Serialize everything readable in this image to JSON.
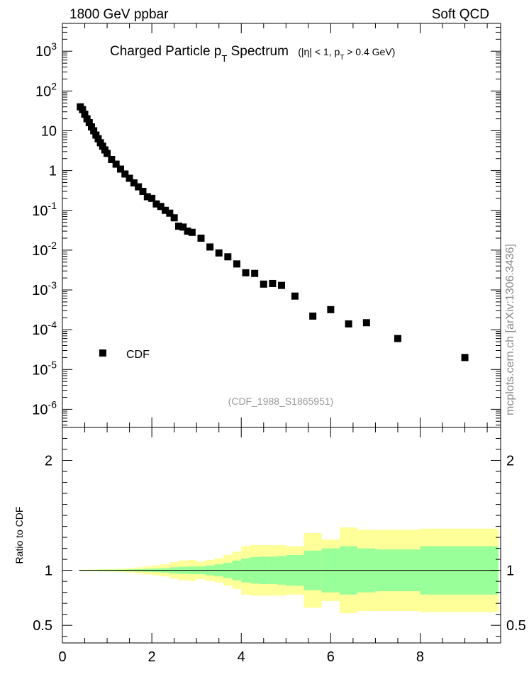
{
  "header": {
    "left": "1800 GeV ppbar",
    "right": "Soft QCD",
    "side": "mcplots.cern.ch [arXiv:1306.3436]"
  },
  "chart_data": {
    "type": "scatter",
    "title": "Charged Particle p",
    "title_sub": "T",
    "title_tail": " Spectrum",
    "title_cut_pre": "(|η| < 1, p",
    "title_cut_sub": "T",
    "title_cut_post": " > 0.4 GeV)",
    "analysis_id": "(CDF_1988_S1865951)",
    "legend_label": "CDF",
    "legend_placement": "bottom-left",
    "log_y": true,
    "xlim": [
      0,
      9.8
    ],
    "ylim": [
      3.5e-07,
      5000
    ],
    "x_ticks": [
      0,
      2,
      4,
      6,
      8
    ],
    "x_tick_labels": [
      "0",
      "2",
      "4",
      "6",
      "8"
    ],
    "y_ticks": [
      1e-06,
      1e-05,
      0.0001,
      0.001,
      0.01,
      0.1,
      1,
      10,
      100,
      1000
    ],
    "y_tick_labels": [
      {
        "base": "10",
        "exp": "-6"
      },
      {
        "base": "10",
        "exp": "-5"
      },
      {
        "base": "10",
        "exp": "-4"
      },
      {
        "base": "10",
        "exp": "-3"
      },
      {
        "base": "10",
        "exp": "-2"
      },
      {
        "base": "10",
        "exp": "-1"
      },
      {
        "base": "1",
        "exp": ""
      },
      {
        "base": "10",
        "exp": ""
      },
      {
        "base": "10",
        "exp": "2"
      },
      {
        "base": "10",
        "exp": "3"
      }
    ],
    "series": [
      {
        "name": "CDF",
        "color": "#000000",
        "x": [
          0.4,
          0.45,
          0.5,
          0.55,
          0.6,
          0.65,
          0.7,
          0.75,
          0.8,
          0.85,
          0.9,
          0.95,
          1.0,
          1.1,
          1.2,
          1.3,
          1.4,
          1.5,
          1.6,
          1.7,
          1.8,
          1.9,
          2.0,
          2.1,
          2.2,
          2.3,
          2.4,
          2.5,
          2.6,
          2.7,
          2.8,
          2.9,
          3.1,
          3.3,
          3.5,
          3.7,
          3.9,
          4.1,
          4.3,
          4.5,
          4.7,
          4.9,
          5.2,
          5.6,
          6.0,
          6.4,
          6.8,
          7.5,
          9.0
        ],
        "y": [
          40,
          34,
          26,
          20,
          16,
          12.5,
          10,
          7.8,
          6.3,
          5.0,
          4.1,
          3.3,
          2.7,
          1.9,
          1.45,
          1.09,
          0.82,
          0.64,
          0.49,
          0.39,
          0.3,
          0.22,
          0.2,
          0.145,
          0.125,
          0.1,
          0.085,
          0.065,
          0.04,
          0.038,
          0.03,
          0.028,
          0.02,
          0.012,
          0.0085,
          0.0068,
          0.0045,
          0.0027,
          0.0026,
          0.0014,
          0.00145,
          0.0013,
          0.0007,
          0.00022,
          0.00032,
          0.00014,
          0.00015,
          6e-05,
          2e-05
        ]
      }
    ],
    "ratio": {
      "ylabel": "Ratio to CDF",
      "ylim": [
        0.34,
        2.3
      ],
      "y_ticks": [
        0.5,
        1,
        2
      ],
      "y_tick_labels": [
        "0.5",
        "1",
        "2"
      ],
      "band_colors": {
        "stat": "#99ff99",
        "total": "#ffff99",
        "line": "#000000"
      },
      "bins": [
        {
          "x0": 0.375,
          "x1": 0.6,
          "stat": 0.004,
          "total": 0.006
        },
        {
          "x0": 0.6,
          "x1": 0.8,
          "stat": 0.005,
          "total": 0.008
        },
        {
          "x0": 0.8,
          "x1": 1.0,
          "stat": 0.006,
          "total": 0.01
        },
        {
          "x0": 1.0,
          "x1": 1.2,
          "stat": 0.006,
          "total": 0.012
        },
        {
          "x0": 1.2,
          "x1": 1.4,
          "stat": 0.007,
          "total": 0.015
        },
        {
          "x0": 1.4,
          "x1": 1.6,
          "stat": 0.008,
          "total": 0.02
        },
        {
          "x0": 1.6,
          "x1": 1.8,
          "stat": 0.01,
          "total": 0.027
        },
        {
          "x0": 1.8,
          "x1": 2.0,
          "stat": 0.013,
          "total": 0.036
        },
        {
          "x0": 2.0,
          "x1": 2.2,
          "stat": 0.017,
          "total": 0.045
        },
        {
          "x0": 2.2,
          "x1": 2.4,
          "stat": 0.02,
          "total": 0.055
        },
        {
          "x0": 2.4,
          "x1": 2.6,
          "stat": 0.028,
          "total": 0.075
        },
        {
          "x0": 2.6,
          "x1": 2.8,
          "stat": 0.032,
          "total": 0.09
        },
        {
          "x0": 2.8,
          "x1": 3.0,
          "stat": 0.035,
          "total": 0.095
        },
        {
          "x0": 3.0,
          "x1": 3.2,
          "stat": 0.035,
          "total": 0.08
        },
        {
          "x0": 3.2,
          "x1": 3.4,
          "stat": 0.045,
          "total": 0.095
        },
        {
          "x0": 3.4,
          "x1": 3.6,
          "stat": 0.055,
          "total": 0.11
        },
        {
          "x0": 3.6,
          "x1": 3.8,
          "stat": 0.07,
          "total": 0.14
        },
        {
          "x0": 3.8,
          "x1": 4.0,
          "stat": 0.09,
          "total": 0.17
        },
        {
          "x0": 4.0,
          "x1": 4.2,
          "stat": 0.11,
          "total": 0.22
        },
        {
          "x0": 4.2,
          "x1": 4.4,
          "stat": 0.12,
          "total": 0.23
        },
        {
          "x0": 4.4,
          "x1": 4.6,
          "stat": 0.125,
          "total": 0.23
        },
        {
          "x0": 4.6,
          "x1": 4.8,
          "stat": 0.125,
          "total": 0.23
        },
        {
          "x0": 4.8,
          "x1": 5.0,
          "stat": 0.13,
          "total": 0.23
        },
        {
          "x0": 5.0,
          "x1": 5.4,
          "stat": 0.14,
          "total": 0.22
        },
        {
          "x0": 5.4,
          "x1": 5.8,
          "stat": 0.18,
          "total": 0.34
        },
        {
          "x0": 5.8,
          "x1": 6.2,
          "stat": 0.2,
          "total": 0.28
        },
        {
          "x0": 6.2,
          "x1": 6.6,
          "stat": 0.22,
          "total": 0.39
        },
        {
          "x0": 6.6,
          "x1": 7.0,
          "stat": 0.2,
          "total": 0.37
        },
        {
          "x0": 7.0,
          "x1": 8.0,
          "stat": 0.19,
          "total": 0.37
        },
        {
          "x0": 8.0,
          "x1": 9.75,
          "stat": 0.22,
          "total": 0.38
        }
      ],
      "total_lower_floor": 0.34
    }
  }
}
